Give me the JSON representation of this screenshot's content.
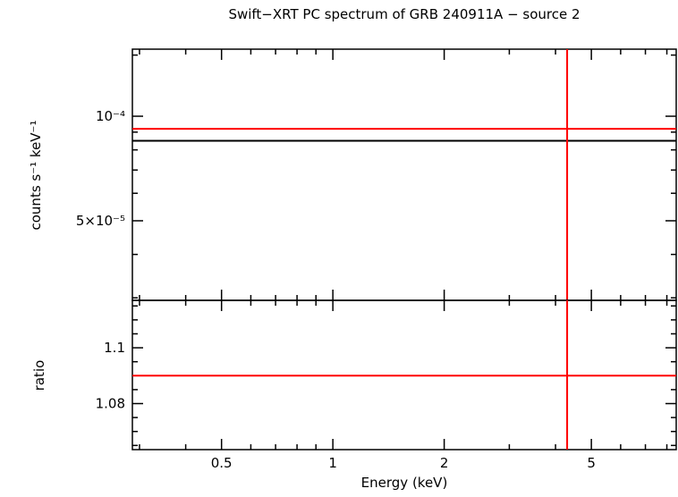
{
  "title": "Swift−XRT PC spectrum of GRB 240911A − source 2",
  "chart_data": {
    "type": "line",
    "title": "Swift−XRT PC spectrum of GRB 240911A − source 2",
    "xlabel": "Energy (keV)",
    "xscale": "log",
    "xlim": [
      0.287,
      8.48
    ],
    "grid": false,
    "legend": "none",
    "xticks": {
      "major": [
        0.5,
        1,
        2,
        5
      ],
      "labels": [
        "0.5",
        "1",
        "2",
        "5"
      ],
      "minor": [
        0.3,
        0.4,
        0.6,
        0.7,
        0.8,
        0.9,
        3,
        4,
        6,
        7,
        8
      ]
    },
    "panels": [
      {
        "name": "spectrum",
        "ylabel": "counts s⁻¹ keV⁻¹",
        "yscale": "log",
        "ylim": [
          2.95e-05,
          0.000156
        ],
        "yticks": {
          "major": [
            0.0001,
            5e-05
          ],
          "labels": [
            "10⁻⁴",
            "5×10⁻⁵"
          ],
          "minor": [
            3e-05,
            4e-05,
            6e-05,
            7e-05,
            8e-05,
            9e-05,
            0.00015
          ]
        },
        "lines": [
          {
            "name": "model-line-black",
            "orientation": "horizontal",
            "value": 8.5e-05,
            "color": "#000000"
          },
          {
            "name": "spectrum-red-hline",
            "orientation": "horizontal",
            "value": 9.2e-05,
            "color": "#ff0000"
          },
          {
            "name": "energy-marker-vline",
            "orientation": "vertical",
            "value": 4.3,
            "color": "#ff0000"
          }
        ]
      },
      {
        "name": "ratio",
        "ylabel": "ratio",
        "yscale": "linear",
        "ylim": [
          1.0635,
          1.117
        ],
        "yticks": {
          "major": [
            1.1,
            1.08
          ],
          "labels": [
            "1.1",
            "1.08"
          ],
          "minor": [
            1.065,
            1.07,
            1.075,
            1.085,
            1.09,
            1.095,
            1.105,
            1.11,
            1.115
          ]
        },
        "lines": [
          {
            "name": "ratio-red-hline",
            "orientation": "horizontal",
            "value": 1.09,
            "color": "#ff0000"
          },
          {
            "name": "energy-marker-vline",
            "orientation": "vertical",
            "value": 4.3,
            "color": "#ff0000"
          }
        ]
      }
    ],
    "colors": {
      "frame": "#000000",
      "model": "#000000",
      "marker": "#ff0000"
    }
  }
}
